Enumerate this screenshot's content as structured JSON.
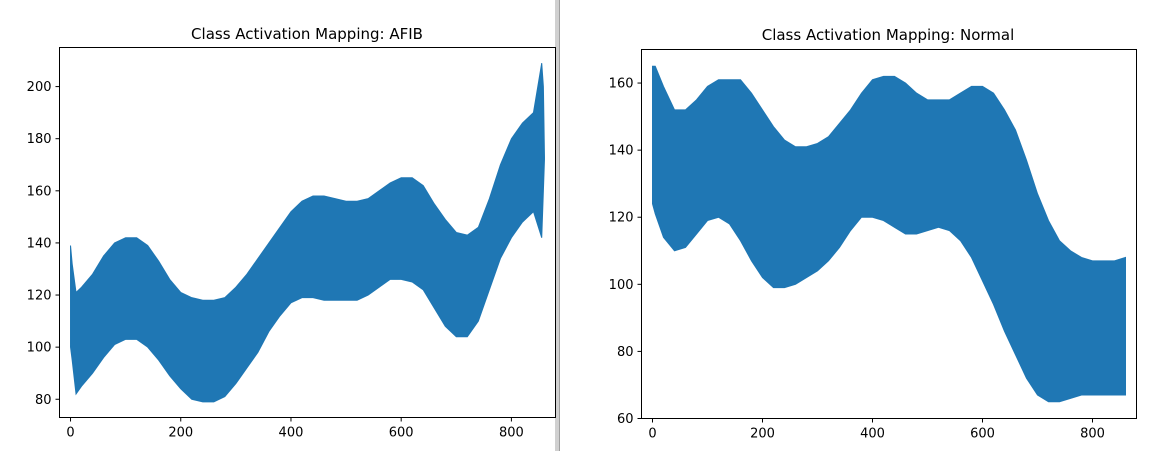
{
  "chart_data": [
    {
      "type": "area",
      "title": "Class Activation Mapping: AFIB",
      "xlabel": "",
      "ylabel": "",
      "xlim": [
        -20,
        880
      ],
      "ylim": [
        73,
        215
      ],
      "xticks": [
        0,
        200,
        400,
        600,
        800
      ],
      "yticks": [
        80,
        100,
        120,
        140,
        160,
        180,
        200
      ],
      "grid": false,
      "color": "#1f77b4",
      "band": {
        "x": [
          0,
          3,
          10,
          20,
          40,
          60,
          80,
          100,
          120,
          140,
          160,
          180,
          200,
          220,
          240,
          260,
          280,
          300,
          320,
          340,
          360,
          380,
          400,
          420,
          440,
          460,
          480,
          500,
          520,
          540,
          560,
          580,
          600,
          620,
          640,
          660,
          680,
          700,
          720,
          740,
          760,
          780,
          800,
          820,
          840,
          855,
          858,
          860
        ],
        "upper": [
          139,
          132,
          121,
          123,
          128,
          135,
          140,
          142,
          142,
          139,
          133,
          126,
          121,
          119,
          118,
          118,
          119,
          123,
          128,
          134,
          140,
          146,
          152,
          156,
          158,
          158,
          157,
          156,
          156,
          157,
          160,
          163,
          165,
          165,
          162,
          155,
          149,
          144,
          143,
          146,
          157,
          170,
          180,
          186,
          190,
          209,
          200,
          173
        ],
        "lower": [
          100,
          95,
          82,
          85,
          90,
          96,
          101,
          103,
          103,
          100,
          95,
          89,
          84,
          80,
          79,
          79,
          81,
          86,
          92,
          98,
          106,
          112,
          117,
          119,
          119,
          118,
          118,
          118,
          118,
          120,
          123,
          126,
          126,
          125,
          122,
          115,
          108,
          104,
          104,
          110,
          122,
          134,
          142,
          148,
          152,
          142,
          160,
          172
        ]
      }
    },
    {
      "type": "area",
      "title": "Class Activation Mapping: Normal",
      "xlabel": "",
      "ylabel": "",
      "xlim": [
        -20,
        880
      ],
      "ylim": [
        60,
        170
      ],
      "xticks": [
        0,
        200,
        400,
        600,
        800
      ],
      "yticks": [
        60,
        80,
        100,
        120,
        140,
        160
      ],
      "grid": false,
      "color": "#1f77b4",
      "band": {
        "x": [
          0,
          5,
          20,
          40,
          60,
          80,
          100,
          120,
          140,
          160,
          180,
          200,
          220,
          240,
          260,
          280,
          300,
          320,
          340,
          360,
          380,
          400,
          420,
          440,
          460,
          480,
          500,
          520,
          540,
          560,
          580,
          600,
          620,
          640,
          660,
          680,
          700,
          720,
          740,
          760,
          780,
          800,
          820,
          840,
          860
        ],
        "upper": [
          165,
          165,
          159,
          152,
          152,
          155,
          159,
          161,
          161,
          161,
          157,
          152,
          147,
          143,
          141,
          141,
          142,
          144,
          148,
          152,
          157,
          161,
          162,
          162,
          160,
          157,
          155,
          155,
          155,
          157,
          159,
          159,
          157,
          152,
          146,
          137,
          127,
          119,
          113,
          110,
          108,
          107,
          107,
          107,
          108
        ],
        "lower": [
          124,
          121,
          114,
          110,
          111,
          115,
          119,
          120,
          118,
          113,
          107,
          102,
          99,
          99,
          100,
          102,
          104,
          107,
          111,
          116,
          120,
          120,
          119,
          117,
          115,
          115,
          116,
          117,
          116,
          113,
          108,
          101,
          94,
          86,
          79,
          72,
          67,
          65,
          65,
          66,
          67,
          67,
          67,
          67,
          67
        ]
      }
    }
  ]
}
